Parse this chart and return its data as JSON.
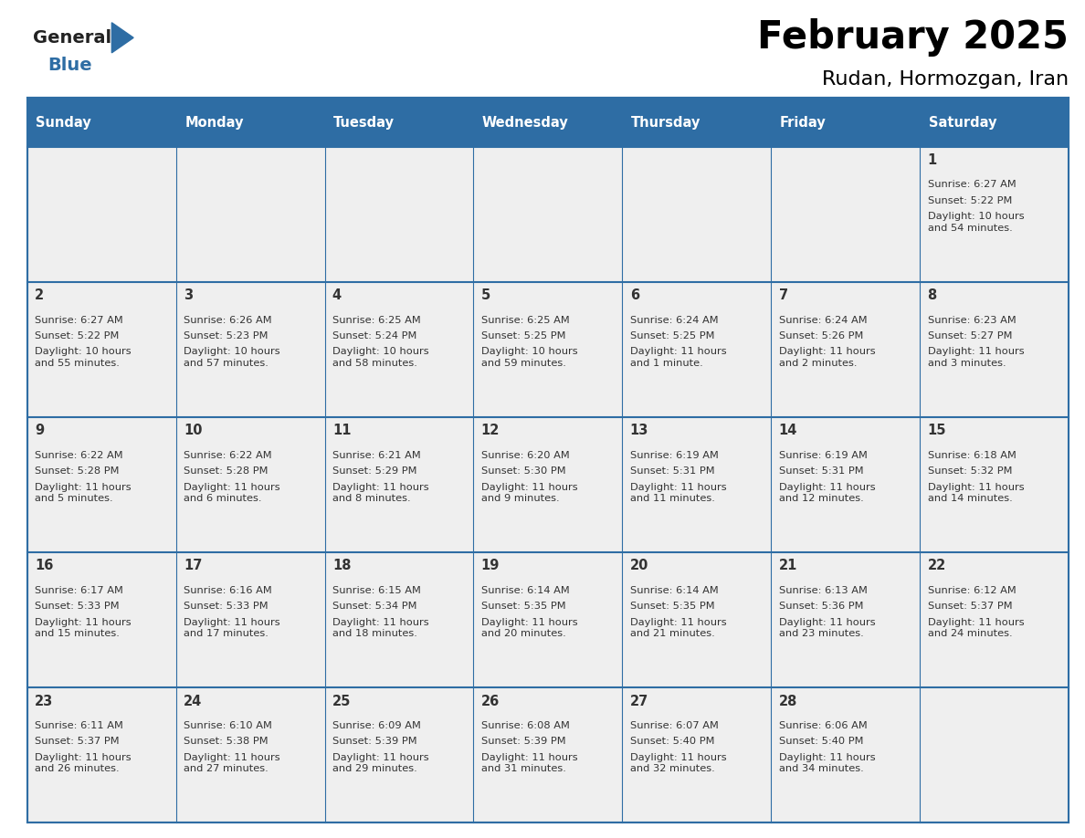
{
  "title": "February 2025",
  "subtitle": "Rudan, Hormozgan, Iran",
  "days_of_week": [
    "Sunday",
    "Monday",
    "Tuesday",
    "Wednesday",
    "Thursday",
    "Friday",
    "Saturday"
  ],
  "header_bg": "#2E6DA4",
  "header_text": "#FFFFFF",
  "cell_bg": "#EFEFEF",
  "border_color": "#2E6DA4",
  "text_color": "#333333",
  "title_color": "#000000",
  "logo_general_color": "#222222",
  "logo_blue_color": "#2E6DA4",
  "days": [
    {
      "day": 1,
      "col": 6,
      "row": 0,
      "sunrise": "6:27 AM",
      "sunset": "5:22 PM",
      "daylight": "10 hours\nand 54 minutes."
    },
    {
      "day": 2,
      "col": 0,
      "row": 1,
      "sunrise": "6:27 AM",
      "sunset": "5:22 PM",
      "daylight": "10 hours\nand 55 minutes."
    },
    {
      "day": 3,
      "col": 1,
      "row": 1,
      "sunrise": "6:26 AM",
      "sunset": "5:23 PM",
      "daylight": "10 hours\nand 57 minutes."
    },
    {
      "day": 4,
      "col": 2,
      "row": 1,
      "sunrise": "6:25 AM",
      "sunset": "5:24 PM",
      "daylight": "10 hours\nand 58 minutes."
    },
    {
      "day": 5,
      "col": 3,
      "row": 1,
      "sunrise": "6:25 AM",
      "sunset": "5:25 PM",
      "daylight": "10 hours\nand 59 minutes."
    },
    {
      "day": 6,
      "col": 4,
      "row": 1,
      "sunrise": "6:24 AM",
      "sunset": "5:25 PM",
      "daylight": "11 hours\nand 1 minute."
    },
    {
      "day": 7,
      "col": 5,
      "row": 1,
      "sunrise": "6:24 AM",
      "sunset": "5:26 PM",
      "daylight": "11 hours\nand 2 minutes."
    },
    {
      "day": 8,
      "col": 6,
      "row": 1,
      "sunrise": "6:23 AM",
      "sunset": "5:27 PM",
      "daylight": "11 hours\nand 3 minutes."
    },
    {
      "day": 9,
      "col": 0,
      "row": 2,
      "sunrise": "6:22 AM",
      "sunset": "5:28 PM",
      "daylight": "11 hours\nand 5 minutes."
    },
    {
      "day": 10,
      "col": 1,
      "row": 2,
      "sunrise": "6:22 AM",
      "sunset": "5:28 PM",
      "daylight": "11 hours\nand 6 minutes."
    },
    {
      "day": 11,
      "col": 2,
      "row": 2,
      "sunrise": "6:21 AM",
      "sunset": "5:29 PM",
      "daylight": "11 hours\nand 8 minutes."
    },
    {
      "day": 12,
      "col": 3,
      "row": 2,
      "sunrise": "6:20 AM",
      "sunset": "5:30 PM",
      "daylight": "11 hours\nand 9 minutes."
    },
    {
      "day": 13,
      "col": 4,
      "row": 2,
      "sunrise": "6:19 AM",
      "sunset": "5:31 PM",
      "daylight": "11 hours\nand 11 minutes."
    },
    {
      "day": 14,
      "col": 5,
      "row": 2,
      "sunrise": "6:19 AM",
      "sunset": "5:31 PM",
      "daylight": "11 hours\nand 12 minutes."
    },
    {
      "day": 15,
      "col": 6,
      "row": 2,
      "sunrise": "6:18 AM",
      "sunset": "5:32 PM",
      "daylight": "11 hours\nand 14 minutes."
    },
    {
      "day": 16,
      "col": 0,
      "row": 3,
      "sunrise": "6:17 AM",
      "sunset": "5:33 PM",
      "daylight": "11 hours\nand 15 minutes."
    },
    {
      "day": 17,
      "col": 1,
      "row": 3,
      "sunrise": "6:16 AM",
      "sunset": "5:33 PM",
      "daylight": "11 hours\nand 17 minutes."
    },
    {
      "day": 18,
      "col": 2,
      "row": 3,
      "sunrise": "6:15 AM",
      "sunset": "5:34 PM",
      "daylight": "11 hours\nand 18 minutes."
    },
    {
      "day": 19,
      "col": 3,
      "row": 3,
      "sunrise": "6:14 AM",
      "sunset": "5:35 PM",
      "daylight": "11 hours\nand 20 minutes."
    },
    {
      "day": 20,
      "col": 4,
      "row": 3,
      "sunrise": "6:14 AM",
      "sunset": "5:35 PM",
      "daylight": "11 hours\nand 21 minutes."
    },
    {
      "day": 21,
      "col": 5,
      "row": 3,
      "sunrise": "6:13 AM",
      "sunset": "5:36 PM",
      "daylight": "11 hours\nand 23 minutes."
    },
    {
      "day": 22,
      "col": 6,
      "row": 3,
      "sunrise": "6:12 AM",
      "sunset": "5:37 PM",
      "daylight": "11 hours\nand 24 minutes."
    },
    {
      "day": 23,
      "col": 0,
      "row": 4,
      "sunrise": "6:11 AM",
      "sunset": "5:37 PM",
      "daylight": "11 hours\nand 26 minutes."
    },
    {
      "day": 24,
      "col": 1,
      "row": 4,
      "sunrise": "6:10 AM",
      "sunset": "5:38 PM",
      "daylight": "11 hours\nand 27 minutes."
    },
    {
      "day": 25,
      "col": 2,
      "row": 4,
      "sunrise": "6:09 AM",
      "sunset": "5:39 PM",
      "daylight": "11 hours\nand 29 minutes."
    },
    {
      "day": 26,
      "col": 3,
      "row": 4,
      "sunrise": "6:08 AM",
      "sunset": "5:39 PM",
      "daylight": "11 hours\nand 31 minutes."
    },
    {
      "day": 27,
      "col": 4,
      "row": 4,
      "sunrise": "6:07 AM",
      "sunset": "5:40 PM",
      "daylight": "11 hours\nand 32 minutes."
    },
    {
      "day": 28,
      "col": 5,
      "row": 4,
      "sunrise": "6:06 AM",
      "sunset": "5:40 PM",
      "daylight": "11 hours\nand 34 minutes."
    }
  ],
  "num_rows": 5,
  "num_cols": 7,
  "fig_width": 11.88,
  "fig_height": 9.18
}
